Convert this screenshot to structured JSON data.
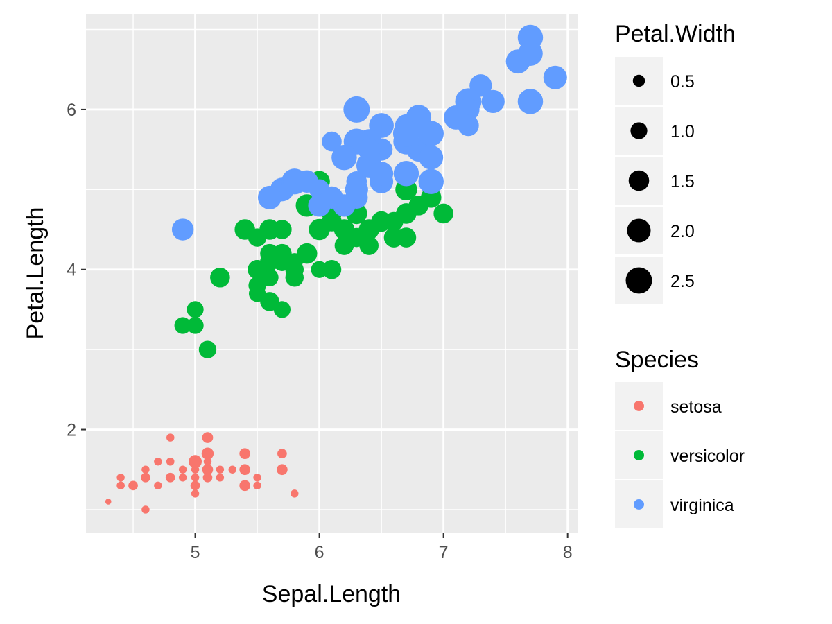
{
  "chart_data": {
    "type": "scatter",
    "xlabel": "Sepal.Length",
    "ylabel": "Petal.Length",
    "xlim": [
      4.12,
      8.08
    ],
    "ylim": [
      0.705,
      7.195
    ],
    "x_ticks": [
      5,
      6,
      7,
      8
    ],
    "y_ticks": [
      2,
      4,
      6
    ],
    "grid": true,
    "legend_position": "right",
    "size_legend": {
      "title": "Petal.Width",
      "entries": [
        {
          "label": "0.5",
          "value": 0.5
        },
        {
          "label": "1.0",
          "value": 1.0
        },
        {
          "label": "1.5",
          "value": 1.5
        },
        {
          "label": "2.0",
          "value": 2.0
        },
        {
          "label": "2.5",
          "value": 2.5
        }
      ]
    },
    "color_legend": {
      "title": "Species",
      "entries": [
        {
          "label": "setosa",
          "color": "#F8766D"
        },
        {
          "label": "versicolor",
          "color": "#00BA38"
        },
        {
          "label": "virginica",
          "color": "#619CFF"
        }
      ]
    },
    "series": [
      {
        "name": "setosa",
        "color": "#F8766D",
        "points": [
          [
            5.1,
            1.4,
            0.2
          ],
          [
            4.9,
            1.4,
            0.2
          ],
          [
            4.7,
            1.3,
            0.2
          ],
          [
            4.6,
            1.5,
            0.2
          ],
          [
            5.0,
            1.4,
            0.2
          ],
          [
            5.4,
            1.7,
            0.4
          ],
          [
            4.6,
            1.4,
            0.3
          ],
          [
            5.0,
            1.5,
            0.2
          ],
          [
            4.4,
            1.4,
            0.2
          ],
          [
            4.9,
            1.5,
            0.1
          ],
          [
            5.4,
            1.5,
            0.2
          ],
          [
            4.8,
            1.6,
            0.2
          ],
          [
            4.8,
            1.4,
            0.1
          ],
          [
            4.3,
            1.1,
            0.1
          ],
          [
            5.8,
            1.2,
            0.2
          ],
          [
            5.7,
            1.5,
            0.4
          ],
          [
            5.4,
            1.3,
            0.4
          ],
          [
            5.1,
            1.4,
            0.3
          ],
          [
            5.7,
            1.7,
            0.3
          ],
          [
            5.1,
            1.5,
            0.3
          ],
          [
            5.4,
            1.7,
            0.2
          ],
          [
            5.1,
            1.5,
            0.4
          ],
          [
            4.6,
            1.0,
            0.2
          ],
          [
            5.1,
            1.7,
            0.5
          ],
          [
            4.8,
            1.9,
            0.2
          ],
          [
            5.0,
            1.6,
            0.2
          ],
          [
            5.0,
            1.6,
            0.4
          ],
          [
            5.2,
            1.5,
            0.2
          ],
          [
            5.2,
            1.4,
            0.2
          ],
          [
            4.7,
            1.6,
            0.2
          ],
          [
            4.8,
            1.6,
            0.2
          ],
          [
            5.4,
            1.5,
            0.4
          ],
          [
            5.2,
            1.5,
            0.1
          ],
          [
            5.5,
            1.4,
            0.2
          ],
          [
            4.9,
            1.5,
            0.2
          ],
          [
            5.0,
            1.2,
            0.2
          ],
          [
            5.5,
            1.3,
            0.2
          ],
          [
            4.9,
            1.4,
            0.1
          ],
          [
            4.4,
            1.3,
            0.2
          ],
          [
            5.1,
            1.5,
            0.2
          ],
          [
            5.0,
            1.3,
            0.3
          ],
          [
            4.5,
            1.3,
            0.3
          ],
          [
            4.4,
            1.3,
            0.2
          ],
          [
            5.0,
            1.6,
            0.6
          ],
          [
            5.1,
            1.9,
            0.4
          ],
          [
            4.8,
            1.4,
            0.3
          ],
          [
            5.1,
            1.6,
            0.2
          ],
          [
            4.6,
            1.4,
            0.2
          ],
          [
            5.3,
            1.5,
            0.2
          ],
          [
            5.0,
            1.4,
            0.2
          ]
        ]
      },
      {
        "name": "versicolor",
        "color": "#00BA38",
        "points": [
          [
            7.0,
            4.7,
            1.4
          ],
          [
            6.4,
            4.5,
            1.5
          ],
          [
            6.9,
            4.9,
            1.5
          ],
          [
            5.5,
            4.0,
            1.3
          ],
          [
            6.5,
            4.6,
            1.5
          ],
          [
            5.7,
            4.5,
            1.3
          ],
          [
            6.3,
            4.7,
            1.6
          ],
          [
            4.9,
            3.3,
            1.0
          ],
          [
            6.6,
            4.6,
            1.3
          ],
          [
            5.2,
            3.9,
            1.4
          ],
          [
            5.0,
            3.5,
            1.0
          ],
          [
            5.9,
            4.2,
            1.5
          ],
          [
            6.0,
            4.0,
            1.0
          ],
          [
            6.1,
            4.7,
            1.4
          ],
          [
            5.6,
            3.6,
            1.3
          ],
          [
            6.7,
            4.4,
            1.4
          ],
          [
            5.6,
            4.5,
            1.5
          ],
          [
            5.8,
            4.1,
            1.0
          ],
          [
            6.2,
            4.5,
            1.5
          ],
          [
            5.6,
            3.9,
            1.1
          ],
          [
            5.9,
            4.8,
            1.8
          ],
          [
            6.1,
            4.0,
            1.3
          ],
          [
            6.3,
            4.9,
            1.5
          ],
          [
            6.1,
            4.7,
            1.2
          ],
          [
            6.4,
            4.3,
            1.3
          ],
          [
            6.6,
            4.4,
            1.4
          ],
          [
            6.8,
            4.8,
            1.4
          ],
          [
            6.7,
            5.0,
            1.7
          ],
          [
            6.0,
            4.5,
            1.5
          ],
          [
            5.7,
            3.5,
            1.0
          ],
          [
            5.5,
            3.8,
            1.1
          ],
          [
            5.5,
            3.7,
            1.0
          ],
          [
            5.8,
            3.9,
            1.2
          ],
          [
            6.0,
            5.1,
            1.6
          ],
          [
            5.4,
            4.5,
            1.5
          ],
          [
            6.0,
            4.5,
            1.6
          ],
          [
            6.7,
            4.7,
            1.5
          ],
          [
            6.3,
            4.4,
            1.3
          ],
          [
            5.6,
            4.1,
            1.3
          ],
          [
            5.5,
            4.0,
            1.3
          ],
          [
            5.5,
            4.4,
            1.2
          ],
          [
            6.1,
            4.6,
            1.4
          ],
          [
            5.8,
            4.0,
            1.2
          ],
          [
            5.0,
            3.3,
            1.0
          ],
          [
            5.6,
            4.2,
            1.3
          ],
          [
            5.7,
            4.2,
            1.2
          ],
          [
            5.7,
            4.2,
            1.3
          ],
          [
            6.2,
            4.3,
            1.3
          ],
          [
            5.1,
            3.0,
            1.1
          ],
          [
            5.7,
            4.1,
            1.3
          ]
        ]
      },
      {
        "name": "virginica",
        "color": "#619CFF",
        "points": [
          [
            6.3,
            6.0,
            2.5
          ],
          [
            5.8,
            5.1,
            1.9
          ],
          [
            7.1,
            5.9,
            2.1
          ],
          [
            6.3,
            5.6,
            1.8
          ],
          [
            6.5,
            5.8,
            2.2
          ],
          [
            7.6,
            6.6,
            2.1
          ],
          [
            4.9,
            4.5,
            1.7
          ],
          [
            7.3,
            6.3,
            1.8
          ],
          [
            6.7,
            5.8,
            1.8
          ],
          [
            7.2,
            6.1,
            2.5
          ],
          [
            6.5,
            5.1,
            2.0
          ],
          [
            6.4,
            5.3,
            1.9
          ],
          [
            6.8,
            5.5,
            2.1
          ],
          [
            5.7,
            5.0,
            2.0
          ],
          [
            5.8,
            5.1,
            2.4
          ],
          [
            6.4,
            5.3,
            2.3
          ],
          [
            6.5,
            5.5,
            1.8
          ],
          [
            7.7,
            6.7,
            2.2
          ],
          [
            7.7,
            6.9,
            2.3
          ],
          [
            6.0,
            5.0,
            1.5
          ],
          [
            6.9,
            5.7,
            2.3
          ],
          [
            5.6,
            4.9,
            2.0
          ],
          [
            7.7,
            6.7,
            2.0
          ],
          [
            6.3,
            4.9,
            1.8
          ],
          [
            6.7,
            5.7,
            2.1
          ],
          [
            7.2,
            6.0,
            1.8
          ],
          [
            6.2,
            4.8,
            1.8
          ],
          [
            6.1,
            4.9,
            1.8
          ],
          [
            6.4,
            5.6,
            2.1
          ],
          [
            7.2,
            5.8,
            1.6
          ],
          [
            7.4,
            6.1,
            1.9
          ],
          [
            7.9,
            6.4,
            2.0
          ],
          [
            6.4,
            5.6,
            2.2
          ],
          [
            6.3,
            5.1,
            1.5
          ],
          [
            6.1,
            5.6,
            1.4
          ],
          [
            7.7,
            6.1,
            2.3
          ],
          [
            6.3,
            5.6,
            2.4
          ],
          [
            6.4,
            5.5,
            1.8
          ],
          [
            6.0,
            4.8,
            1.8
          ],
          [
            6.9,
            5.4,
            2.1
          ],
          [
            6.7,
            5.6,
            2.4
          ],
          [
            6.9,
            5.1,
            2.3
          ],
          [
            5.8,
            5.1,
            1.9
          ],
          [
            6.8,
            5.9,
            2.3
          ],
          [
            6.7,
            5.7,
            2.5
          ],
          [
            6.7,
            5.2,
            2.3
          ],
          [
            6.3,
            5.0,
            1.9
          ],
          [
            6.5,
            5.2,
            2.0
          ],
          [
            6.2,
            5.4,
            2.3
          ],
          [
            5.9,
            5.1,
            1.8
          ]
        ]
      }
    ]
  }
}
